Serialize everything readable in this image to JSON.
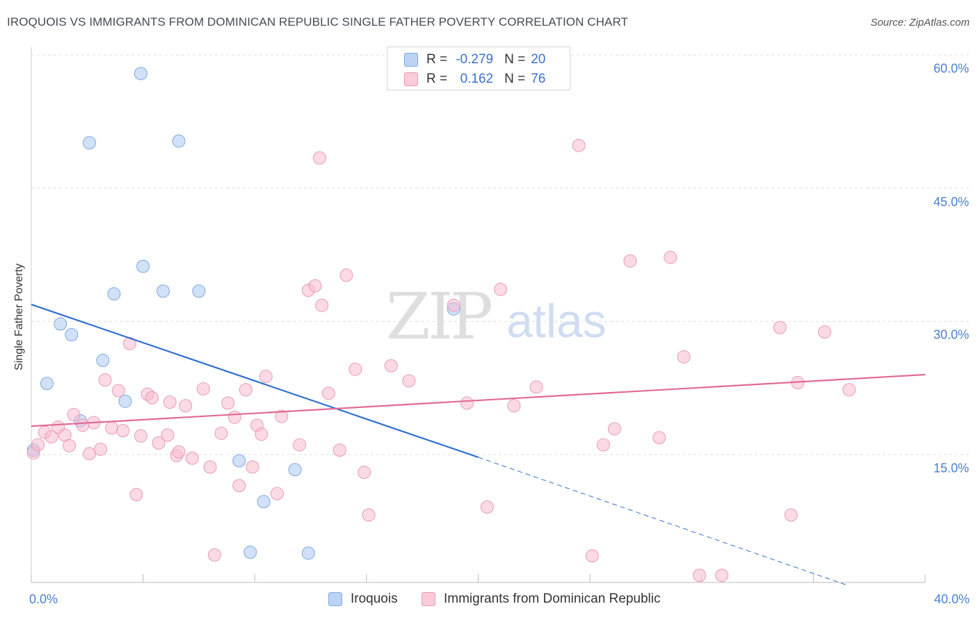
{
  "chart_data": {
    "type": "scatter",
    "title": "IROQUOIS VS IMMIGRANTS FROM DOMINICAN REPUBLIC SINGLE FATHER POVERTY CORRELATION CHART",
    "source": "Source: ZipAtlas.com",
    "watermark": {
      "zip": "ZIP",
      "atlas": "atlas"
    },
    "xlabel": "",
    "ylabel": "Single Father Poverty",
    "xlim": [
      0,
      40
    ],
    "ylim": [
      0,
      63
    ],
    "x_tick_labels": [
      {
        "value": 0,
        "label": "0.0%"
      },
      {
        "value": 40,
        "label": "40.0%"
      }
    ],
    "y_tick_labels": [
      {
        "value": 15,
        "label": "15.0%"
      },
      {
        "value": 30,
        "label": "30.0%"
      },
      {
        "value": 45,
        "label": "45.0%"
      },
      {
        "value": 60,
        "label": "60.0%"
      }
    ],
    "series": [
      {
        "name": "Iroquois",
        "color": "#a9c8f2",
        "stroke": "#7fa8e0",
        "line_color": "#2f6fd0",
        "R_label": "R =",
        "R_value": "-0.279",
        "N_label": "N =",
        "N_value": "20",
        "trend": {
          "x0": 0,
          "y0": 31.9,
          "x1": 20.0,
          "y1": 14.7,
          "dashed_to_x": 36.5,
          "dashed_to_y": 0.3
        },
        "points": [
          [
            0.1,
            15.5
          ],
          [
            0.7,
            23.0
          ],
          [
            1.3,
            29.7
          ],
          [
            1.8,
            28.5
          ],
          [
            2.2,
            18.8
          ],
          [
            2.6,
            50.1
          ],
          [
            3.2,
            25.6
          ],
          [
            3.7,
            33.1
          ],
          [
            4.2,
            21.0
          ],
          [
            4.9,
            57.9
          ],
          [
            5.0,
            36.2
          ],
          [
            5.9,
            33.4
          ],
          [
            6.6,
            50.3
          ],
          [
            7.5,
            33.4
          ],
          [
            9.3,
            14.3
          ],
          [
            9.8,
            4.0
          ],
          [
            10.4,
            9.7
          ],
          [
            11.8,
            13.3
          ],
          [
            12.4,
            3.9
          ],
          [
            18.9,
            31.4
          ]
        ]
      },
      {
        "name": "Immigrants from Dominican Republic",
        "color": "#f7bcd0",
        "stroke": "#e99ab5",
        "line_color": "#e06a95",
        "R_label": "R =",
        "R_value": "0.162",
        "N_label": "N =",
        "N_value": "76",
        "trend": {
          "x0": 0,
          "y0": 18.2,
          "x1": 40,
          "y1": 24.0
        },
        "points": [
          [
            0.1,
            15.2
          ],
          [
            0.3,
            16.1
          ],
          [
            0.6,
            17.5
          ],
          [
            0.9,
            17.0
          ],
          [
            1.2,
            18.1
          ],
          [
            1.5,
            17.2
          ],
          [
            1.7,
            16.0
          ],
          [
            1.9,
            19.5
          ],
          [
            2.3,
            18.3
          ],
          [
            2.6,
            15.1
          ],
          [
            2.8,
            18.6
          ],
          [
            3.1,
            15.6
          ],
          [
            3.3,
            23.4
          ],
          [
            3.6,
            18.0
          ],
          [
            3.9,
            22.2
          ],
          [
            4.1,
            17.7
          ],
          [
            4.4,
            27.5
          ],
          [
            4.7,
            10.5
          ],
          [
            4.9,
            17.1
          ],
          [
            5.2,
            21.8
          ],
          [
            5.4,
            21.4
          ],
          [
            5.7,
            16.3
          ],
          [
            6.1,
            17.2
          ],
          [
            6.2,
            20.9
          ],
          [
            6.5,
            14.9
          ],
          [
            6.6,
            15.3
          ],
          [
            6.9,
            20.5
          ],
          [
            7.2,
            14.6
          ],
          [
            7.7,
            22.4
          ],
          [
            8.0,
            13.6
          ],
          [
            8.2,
            3.7
          ],
          [
            8.5,
            17.4
          ],
          [
            8.8,
            20.8
          ],
          [
            9.1,
            19.2
          ],
          [
            9.3,
            11.5
          ],
          [
            9.6,
            22.3
          ],
          [
            9.9,
            13.6
          ],
          [
            10.1,
            18.3
          ],
          [
            10.3,
            17.3
          ],
          [
            10.5,
            23.8
          ],
          [
            11.0,
            10.6
          ],
          [
            11.2,
            19.3
          ],
          [
            12.0,
            16.1
          ],
          [
            12.4,
            33.5
          ],
          [
            12.7,
            34.0
          ],
          [
            12.9,
            48.4
          ],
          [
            13.0,
            31.8
          ],
          [
            13.3,
            21.9
          ],
          [
            13.8,
            15.5
          ],
          [
            14.1,
            35.2
          ],
          [
            14.5,
            24.6
          ],
          [
            14.9,
            13.0
          ],
          [
            15.1,
            8.2
          ],
          [
            16.1,
            25.0
          ],
          [
            16.9,
            23.3
          ],
          [
            18.9,
            31.8
          ],
          [
            19.5,
            20.8
          ],
          [
            20.4,
            9.1
          ],
          [
            21.0,
            33.6
          ],
          [
            21.6,
            20.5
          ],
          [
            22.6,
            22.6
          ],
          [
            24.5,
            49.8
          ],
          [
            25.1,
            3.6
          ],
          [
            25.6,
            16.1
          ],
          [
            26.1,
            17.9
          ],
          [
            26.8,
            36.8
          ],
          [
            28.1,
            16.9
          ],
          [
            28.6,
            37.2
          ],
          [
            29.2,
            26.0
          ],
          [
            29.9,
            1.4
          ],
          [
            30.9,
            1.4
          ],
          [
            33.5,
            29.3
          ],
          [
            34.0,
            8.2
          ],
          [
            34.3,
            23.1
          ],
          [
            35.5,
            28.8
          ],
          [
            36.6,
            22.3
          ]
        ]
      }
    ]
  }
}
